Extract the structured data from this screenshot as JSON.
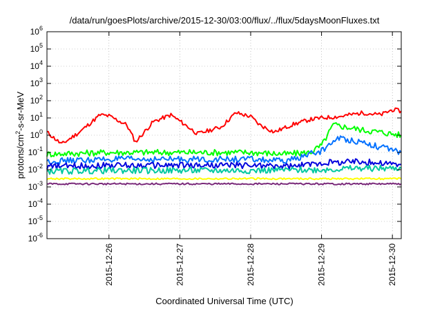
{
  "chart_data": {
    "type": "line",
    "title": "/data/run/goesPlots/archive/2015-12-30/03:00/flux/../flux/5daysMoonFluxes.txt",
    "xlabel": "Coordinated Universal Time (UTC)",
    "ylabel": "protons/cm2-s-sr-MeV",
    "y_scale": "log",
    "ylim": [
      1e-06,
      1000000.0
    ],
    "y_ticks": [
      {
        "base": "10",
        "exp": "-6"
      },
      {
        "base": "10",
        "exp": "-5"
      },
      {
        "base": "10",
        "exp": "-4"
      },
      {
        "base": "10",
        "exp": "-3"
      },
      {
        "base": "10",
        "exp": "-2"
      },
      {
        "base": "10",
        "exp": "-1"
      },
      {
        "base": "10",
        "exp": "0"
      },
      {
        "base": "10",
        "exp": "1"
      },
      {
        "base": "10",
        "exp": "2"
      },
      {
        "base": "10",
        "exp": "3"
      },
      {
        "base": "10",
        "exp": "4"
      },
      {
        "base": "10",
        "exp": "5"
      },
      {
        "base": "10",
        "exp": "6"
      }
    ],
    "xlim": [
      "2015-12-25T03:00",
      "2015-12-30T03:00"
    ],
    "x_ticks": [
      "2015-12-26",
      "2015-12-27",
      "2015-12-28",
      "2015-12-29",
      "2015-12-30"
    ],
    "grid": true,
    "series": [
      {
        "color": "#ff0000",
        "x": [
          "2015-12-25T03:00",
          "2015-12-25T08:00",
          "2015-12-25T14:00",
          "2015-12-25T21:00",
          "2015-12-26T00:00",
          "2015-12-26T06:00",
          "2015-12-26T09:00",
          "2015-12-26T15:00",
          "2015-12-26T21:00",
          "2015-12-27T01:00",
          "2015-12-27T06:00",
          "2015-12-27T14:00",
          "2015-12-27T19:00",
          "2015-12-28T00:00",
          "2015-12-28T03:00",
          "2015-12-28T08:00",
          "2015-12-28T14:00",
          "2015-12-28T20:00",
          "2015-12-29T00:00",
          "2015-12-29T06:00",
          "2015-12-29T14:00",
          "2015-12-29T20:00",
          "2015-12-30T00:00",
          "2015-12-30T03:00"
        ],
        "y": [
          1.5,
          0.3,
          1.5,
          15,
          13,
          4,
          0.4,
          6,
          15,
          5,
          1.2,
          3,
          20,
          12,
          4,
          1.5,
          4,
          8,
          10,
          12,
          20,
          15,
          30,
          25
        ]
      },
      {
        "color": "#00ff00",
        "x": [
          "2015-12-25T03:00",
          "2015-12-26T00:00",
          "2015-12-27T00:00",
          "2015-12-28T00:00",
          "2015-12-28T12:00",
          "2015-12-28T20:00",
          "2015-12-29T00:00",
          "2015-12-29T02:00",
          "2015-12-29T04:00",
          "2015-12-29T14:00",
          "2015-12-29T20:00",
          "2015-12-30T03:00"
        ],
        "y": [
          0.08,
          0.1,
          0.1,
          0.1,
          0.08,
          0.1,
          0.25,
          1,
          4,
          2,
          1.5,
          1
        ]
      },
      {
        "color": "#0070ff",
        "x": [
          "2015-12-25T03:00",
          "2015-12-26T00:00",
          "2015-12-27T00:00",
          "2015-12-28T00:00",
          "2015-12-28T12:00",
          "2015-12-28T22:00",
          "2015-12-29T00:00",
          "2015-12-29T03:00",
          "2015-12-29T05:00",
          "2015-12-29T14:00",
          "2015-12-29T20:00",
          "2015-12-30T03:00"
        ],
        "y": [
          0.03,
          0.04,
          0.04,
          0.04,
          0.03,
          0.1,
          0.12,
          0.3,
          0.7,
          0.4,
          0.2,
          0.1
        ]
      },
      {
        "color": "#0000dd",
        "x": [
          "2015-12-25T03:00",
          "2015-12-26T00:00",
          "2015-12-27T00:00",
          "2015-12-28T00:00",
          "2015-12-28T14:00",
          "2015-12-29T00:00",
          "2015-12-29T12:00",
          "2015-12-30T03:00"
        ],
        "y": [
          0.015,
          0.018,
          0.018,
          0.018,
          0.015,
          0.025,
          0.03,
          0.02
        ]
      },
      {
        "color": "#00c8a0",
        "x": [
          "2015-12-25T03:00",
          "2015-12-26T00:00",
          "2015-12-27T00:00",
          "2015-12-28T00:00",
          "2015-12-29T00:00",
          "2015-12-29T12:00",
          "2015-12-30T03:00"
        ],
        "y": [
          0.008,
          0.009,
          0.009,
          0.009,
          0.01,
          0.012,
          0.012
        ]
      },
      {
        "color": "#ffff00",
        "x": [
          "2015-12-25T03:00",
          "2015-12-26T00:00",
          "2015-12-27T00:00",
          "2015-12-28T00:00",
          "2015-12-29T00:00",
          "2015-12-30T03:00"
        ],
        "y": [
          0.003,
          0.003,
          0.003,
          0.003,
          0.003,
          0.003
        ]
      },
      {
        "color": "#7a2a7a",
        "x": [
          "2015-12-25T03:00",
          "2015-12-26T00:00",
          "2015-12-27T00:00",
          "2015-12-28T00:00",
          "2015-12-29T00:00",
          "2015-12-30T03:00"
        ],
        "y": [
          0.0015,
          0.0015,
          0.0015,
          0.0015,
          0.0015,
          0.0015
        ]
      }
    ]
  }
}
